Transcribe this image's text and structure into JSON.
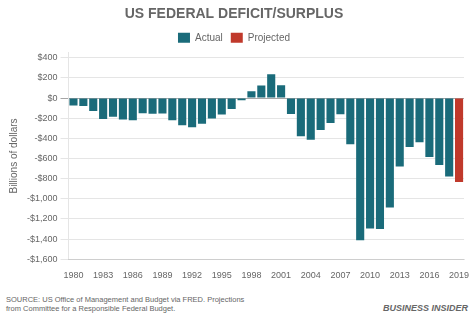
{
  "chart_data": {
    "type": "bar",
    "title": "US FEDERAL DEFICIT/SURPLUS",
    "ylabel": "Billions of dollars",
    "annotations": [
      "SOURCE: US Office of Management and Budget via FRED. Projections\nfrom Committee for a Responsible Federal Budget.",
      "BUSINESS INSIDER"
    ],
    "categories": [
      "1980",
      null,
      null,
      "1983",
      null,
      null,
      "1986",
      null,
      null,
      "1989",
      null,
      null,
      "1992",
      null,
      null,
      "1995",
      null,
      null,
      "1998",
      null,
      null,
      "2001",
      null,
      null,
      "2004",
      null,
      null,
      "2007",
      null,
      null,
      "2010",
      null,
      null,
      "2013",
      null,
      null,
      "2016",
      null,
      null,
      "2019"
    ],
    "series": [
      {
        "name": "Actual",
        "color": "#1a6b7a",
        "values": [
          -74,
          -79,
          -128,
          -208,
          -185,
          -212,
          -221,
          -150,
          -155,
          -152,
          -221,
          -269,
          -290,
          -255,
          -203,
          -164,
          -107,
          -22,
          69,
          126,
          236,
          128,
          -158,
          -378,
          -413,
          -318,
          -248,
          -161,
          -459,
          -1413,
          -1294,
          -1300,
          -1087,
          -680,
          -485,
          -439,
          -585,
          -665,
          -779,
          null
        ]
      },
      {
        "name": "Projected",
        "color": "#c0392b",
        "values": [
          null,
          null,
          null,
          null,
          null,
          null,
          null,
          null,
          null,
          null,
          null,
          null,
          null,
          null,
          null,
          null,
          null,
          null,
          null,
          null,
          null,
          null,
          null,
          null,
          null,
          null,
          null,
          null,
          null,
          null,
          null,
          null,
          null,
          null,
          null,
          null,
          null,
          null,
          null,
          -833
        ]
      }
    ],
    "ylim": [
      -1600,
      450
    ],
    "yticks": [
      {
        "value": 400,
        "label": "$400"
      },
      {
        "value": 200,
        "label": "$200"
      },
      {
        "value": 0,
        "label": "$0"
      },
      {
        "value": -200,
        "label": "-$200"
      },
      {
        "value": -400,
        "label": "-$400"
      },
      {
        "value": -600,
        "label": "-$600"
      },
      {
        "value": -800,
        "label": "-$800"
      },
      {
        "value": -1000,
        "label": "-$1,000"
      },
      {
        "value": -1200,
        "label": "-$1,200"
      },
      {
        "value": -1400,
        "label": "-$1,400"
      },
      {
        "value": -1600,
        "label": "-$1,600"
      }
    ],
    "grid": true,
    "legend": "top"
  }
}
